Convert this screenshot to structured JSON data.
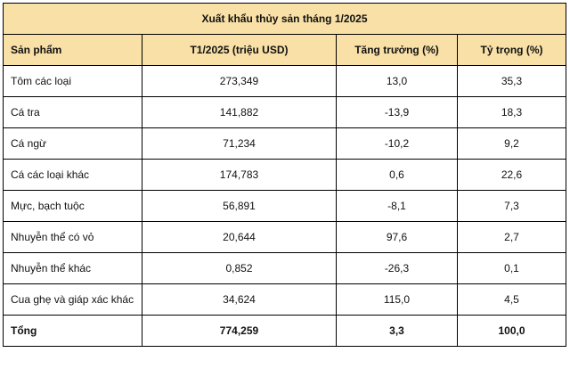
{
  "table": {
    "title": "Xuất khẩu thủy sản tháng 1/2025",
    "headers": [
      "Sản phẩm",
      "T1/2025 (triệu USD)",
      "Tăng trưởng (%)",
      "Tỷ trọng (%)"
    ],
    "rows": [
      [
        "Tôm các loại",
        "273,349",
        "13,0",
        "35,3"
      ],
      [
        "Cá tra",
        "141,882",
        "-13,9",
        "18,3"
      ],
      [
        "Cá ngừ",
        "71,234",
        "-10,2",
        "9,2"
      ],
      [
        "Cá các loại khác",
        "174,783",
        "0,6",
        "22,6"
      ],
      [
        "Mực, bạch tuộc",
        "56,891",
        "-8,1",
        "7,3"
      ],
      [
        "Nhuyễn thể có vỏ",
        "20,644",
        "97,6",
        "2,7"
      ],
      [
        "Nhuyễn thể khác",
        "0,852",
        "-26,3",
        "0,1"
      ],
      [
        "Cua ghẹ và giáp xác khác",
        "34,624",
        "115,0",
        "4,5"
      ]
    ],
    "total": [
      "Tổng",
      "774,259",
      "3,3",
      "100,0"
    ]
  },
  "colors": {
    "header_bg": "#f8e0a6",
    "border": "#000000"
  }
}
